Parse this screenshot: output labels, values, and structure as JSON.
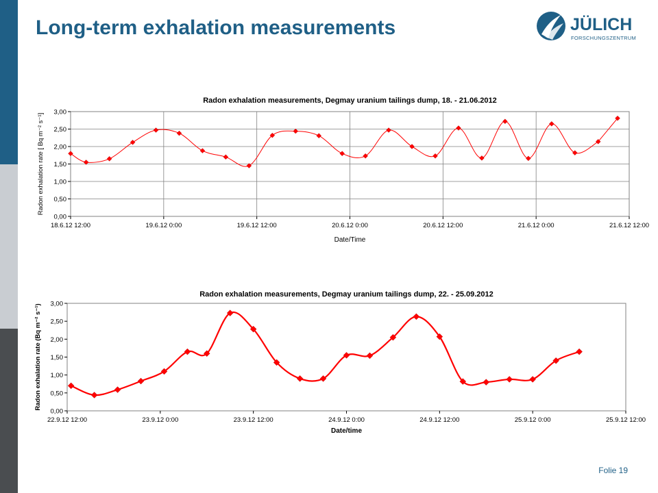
{
  "slide": {
    "title": "Long-term exhalation measurements",
    "footer": "Folie 19"
  },
  "logo": {
    "name": "JÜLICH",
    "subtitle": "FORSCHUNGSZENTRUM",
    "color": "#1f5f86"
  },
  "colors": {
    "accent": "#1f5f86",
    "series": "#ff0000",
    "plot_border": "#808080",
    "grid": "#808080"
  },
  "chart_data": [
    {
      "type": "line",
      "title": "Radon exhalation measurements, Degmay uranium tailings dump, 18. - 21.06.2012",
      "xlabel": "Date/Time",
      "ylabel": "Radon exhalation rate  [ Bq m⁻² s⁻¹]",
      "xlim": [
        "2012-06-18 12:00",
        "2012-06-21 12:00"
      ],
      "ylim": [
        0,
        3
      ],
      "x_ticks": [
        "18.6.12 12:00",
        "19.6.12 0:00",
        "19.6.12 12:00",
        "20.6.12 0:00",
        "20.6.12 12:00",
        "21.6.12 0:00",
        "21.6.12 12:00"
      ],
      "y_ticks": [
        "0,00",
        "0,50",
        "1,00",
        "1,50",
        "2,00",
        "2,50",
        "3,00"
      ],
      "grid": true,
      "smooth": true,
      "marker_size": 3.5,
      "line_width": 1,
      "series": [
        {
          "x": [
            "2012-06-18 12:00",
            "2012-06-18 14:00",
            "2012-06-18 17:00",
            "2012-06-18 20:00",
            "2012-06-18 23:00",
            "2012-06-19 02:00",
            "2012-06-19 05:00",
            "2012-06-19 08:00",
            "2012-06-19 11:00",
            "2012-06-19 14:00",
            "2012-06-19 17:00",
            "2012-06-19 20:00",
            "2012-06-19 23:00",
            "2012-06-20 02:00",
            "2012-06-20 05:00",
            "2012-06-20 08:00",
            "2012-06-20 11:00",
            "2012-06-20 14:00",
            "2012-06-20 17:00",
            "2012-06-20 20:00",
            "2012-06-20 23:00",
            "2012-06-21 02:00",
            "2012-06-21 05:00",
            "2012-06-21 08:00"
          ],
          "y": [
            1.8,
            1.55,
            1.65,
            2.12,
            2.47,
            2.38,
            1.88,
            1.7,
            1.45,
            2.32,
            2.44,
            2.31,
            1.8,
            1.73,
            2.47,
            2.0,
            1.73,
            2.53,
            1.67,
            2.72,
            1.66,
            2.65,
            1.82,
            2.14
          ]
        }
      ],
      "extra_point": {
        "x": "2012-06-21 10:30",
        "y": 2.81
      }
    },
    {
      "type": "line",
      "title": "Radon exhalation measurements, Degmay uranium tailings dump, 22. - 25.09.2012",
      "xlabel": "Date/time",
      "ylabel": "Radon exhalation rate  (Bq m⁻² s⁻¹)",
      "xlim": [
        "2012-09-22 12:00",
        "2012-09-25 12:00"
      ],
      "ylim": [
        0,
        3
      ],
      "x_ticks": [
        "22.9.12 12:00",
        "23.9.12 0:00",
        "23.9.12 12:00",
        "24.9.12 0:00",
        "24.9.12 12:00",
        "25.9.12 0:00",
        "25.9.12 12:00"
      ],
      "y_ticks": [
        "0,00",
        "0,50",
        "1,00",
        "1,50",
        "2,00",
        "2,50",
        "3,00"
      ],
      "grid": false,
      "smooth": true,
      "marker_size": 4.5,
      "line_width": 2.2,
      "series": [
        {
          "x": [
            "2012-09-22 12:30",
            "2012-09-22 15:30",
            "2012-09-22 18:30",
            "2012-09-22 21:30",
            "2012-09-23 00:30",
            "2012-09-23 03:30",
            "2012-09-23 06:00",
            "2012-09-23 09:00",
            "2012-09-23 12:00",
            "2012-09-23 15:00",
            "2012-09-23 18:00",
            "2012-09-23 21:00",
            "2012-09-24 00:00",
            "2012-09-24 03:00",
            "2012-09-24 06:00",
            "2012-09-24 09:00",
            "2012-09-24 12:00",
            "2012-09-24 15:00",
            "2012-09-24 18:00",
            "2012-09-24 21:00",
            "2012-09-25 00:00",
            "2012-09-25 03:00",
            "2012-09-25 06:00"
          ],
          "y": [
            0.7,
            0.44,
            0.59,
            0.83,
            1.1,
            1.65,
            1.6,
            2.73,
            2.28,
            1.35,
            0.9,
            0.9,
            1.55,
            1.54,
            2.05,
            2.63,
            2.07,
            0.82,
            0.8,
            0.88,
            0.88,
            1.4,
            1.65
          ]
        }
      ]
    }
  ]
}
